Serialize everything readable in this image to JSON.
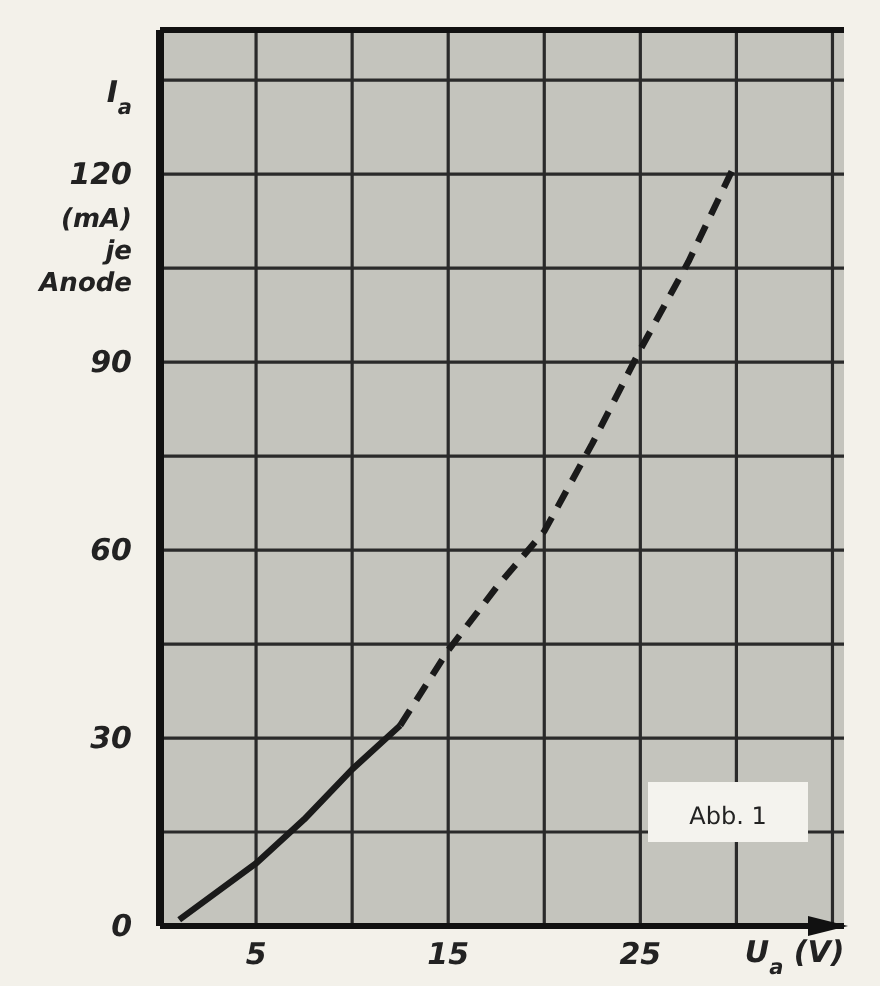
{
  "chart_data": {
    "type": "line",
    "xlabel": "U$_{a}$ (V)",
    "ylabel": "I$_{a}$ (mA) je Anode",
    "xlim": [
      0,
      35.6
    ],
    "xticks": [
      5,
      {
        "value": 10,
        "label": null
      },
      15,
      {
        "value": 20,
        "label": null
      },
      25,
      {
        "value": 30,
        "label": null
      },
      {
        "value": 35,
        "label": null
      }
    ],
    "ylim": [
      0,
      143
    ],
    "yticks": [
      0,
      {
        "value": 15,
        "label": null
      },
      30,
      {
        "value": 45,
        "label": null
      },
      60,
      {
        "value": 75,
        "label": null
      },
      90,
      {
        "value": 105,
        "label": null
      },
      120,
      {
        "value": 135,
        "label": null
      }
    ],
    "grid": true,
    "marker": "none",
    "series": [
      {
        "color": "#1a1a1a",
        "line_style": "solid",
        "x": [
          1,
          3,
          5,
          7.5,
          10,
          12.5
        ],
        "values": [
          1,
          5.5,
          10,
          17,
          25,
          32
        ]
      },
      {
        "color": "#1a1a1a",
        "line_style": "dashed",
        "x": [
          12.5,
          15,
          17.5,
          20,
          22.5,
          25,
          27.5,
          30
        ],
        "values": [
          32,
          44,
          54,
          63,
          77,
          92,
          106,
          122
        ]
      }
    ],
    "annotations": [
      "Abb. 1"
    ]
  }
}
